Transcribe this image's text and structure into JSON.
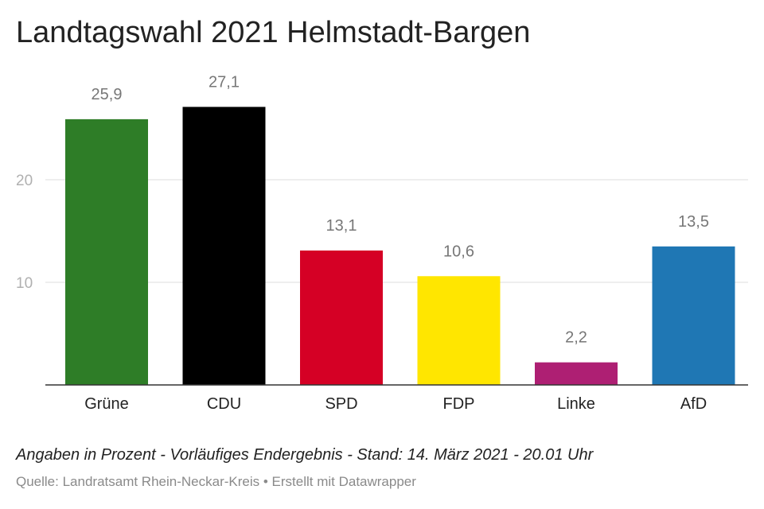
{
  "header": {
    "title": "Landtagswahl 2021 Helmstadt-Bargen"
  },
  "footer": {
    "note": "Angaben in Prozent - Vorläufiges Endergebnis - Stand: 14. März 2021 - 20.01 Uhr",
    "source": "Quelle: Landratsamt Rhein-Neckar-Kreis • Erstellt mit Datawrapper"
  },
  "chart_data": {
    "type": "bar",
    "title": "Landtagswahl 2021 Helmstadt-Bargen",
    "xlabel": "",
    "ylabel": "",
    "categories": [
      "Grüne",
      "CDU",
      "SPD",
      "FDP",
      "Linke",
      "AfD"
    ],
    "values": [
      25.9,
      27.1,
      13.1,
      10.6,
      2.2,
      13.5
    ],
    "value_labels": [
      "25,9",
      "27,1",
      "13,1",
      "10,6",
      "2,2",
      "13,5"
    ],
    "colors": [
      "#2e7d27",
      "#000000",
      "#d50025",
      "#ffe600",
      "#ae1f73",
      "#1f77b4"
    ],
    "y_ticks": [
      10,
      20
    ],
    "ylim": [
      0,
      27.1
    ],
    "grid": true,
    "legend": "none"
  }
}
